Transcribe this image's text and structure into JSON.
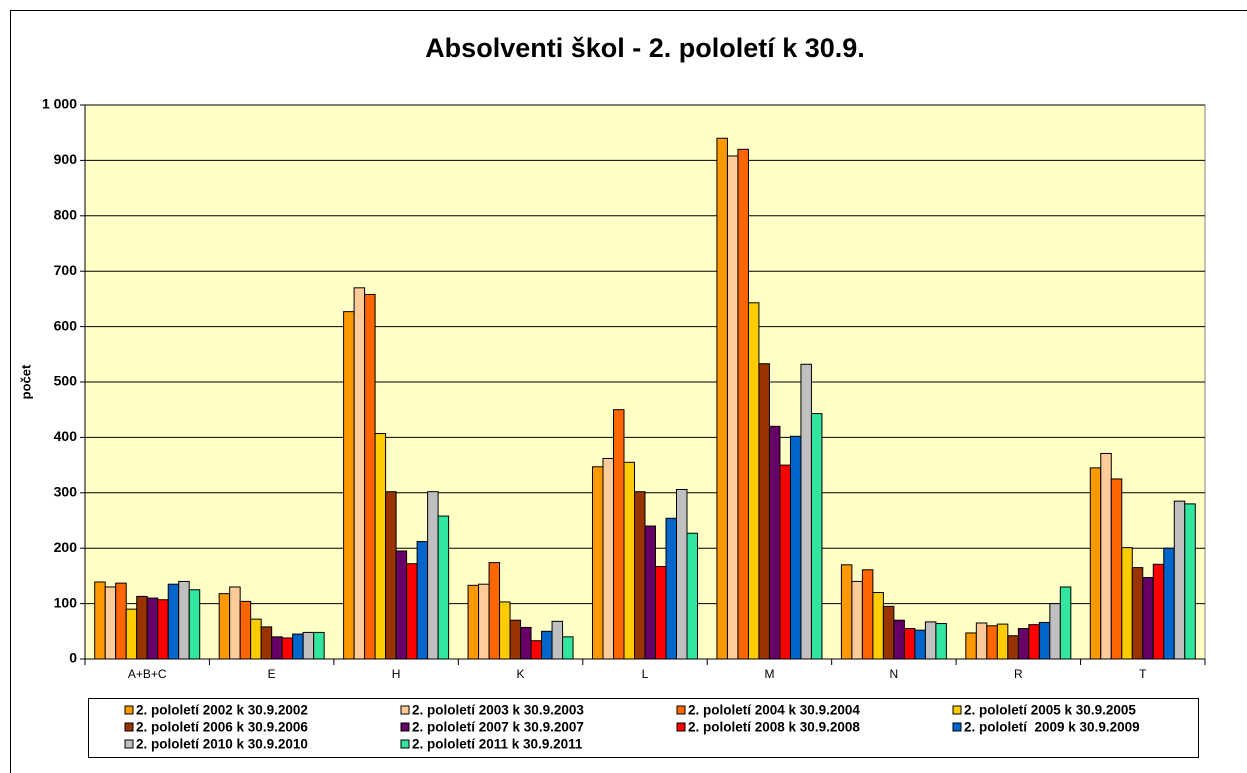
{
  "chart_data": {
    "type": "bar",
    "title": "Absolventi škol - 2. pololetí k 30.9.",
    "y_label": "počet",
    "categories": [
      "A+B+C",
      "E",
      "H",
      "K",
      "L",
      "M",
      "N",
      "R",
      "T"
    ],
    "ylim": [
      0,
      1000
    ],
    "yticks": [
      0,
      100,
      200,
      300,
      400,
      500,
      600,
      700,
      800,
      900,
      {
        "value": 1000,
        "label": "1 000"
      }
    ],
    "grid": true,
    "legend": "bottom",
    "series": [
      {
        "name": "2. pololetí 2002 k 30.9.2002",
        "color": "#FF9900",
        "values": [
          139,
          118,
          627,
          133,
          347,
          940,
          170,
          47,
          345
        ]
      },
      {
        "name": "2. pololetí 2003 k 30.9.2003",
        "color": "#FFCC99",
        "values": [
          130,
          130,
          670,
          135,
          362,
          908,
          140,
          65,
          371
        ]
      },
      {
        "name": "2. pololetí 2004 k 30.9.2004",
        "color": "#FF6600",
        "values": [
          137,
          104,
          658,
          174,
          450,
          920,
          161,
          60,
          325
        ]
      },
      {
        "name": "2. pololetí 2005 k 30.9.2005",
        "color": "#FFCC00",
        "values": [
          90,
          72,
          407,
          103,
          355,
          643,
          120,
          63,
          201
        ]
      },
      {
        "name": "2. pololetí 2006 k 30.9.2006",
        "color": "#993300",
        "values": [
          113,
          58,
          302,
          70,
          302,
          533,
          95,
          42,
          165
        ]
      },
      {
        "name": "2. pololetí 2007 k 30.9.2007",
        "color": "#660066",
        "values": [
          110,
          40,
          195,
          57,
          240,
          420,
          70,
          55,
          147
        ]
      },
      {
        "name": "2. pololetí 2008 k 30.9.2008",
        "color": "#FF0000",
        "values": [
          107,
          38,
          172,
          33,
          167,
          350,
          55,
          62,
          171
        ]
      },
      {
        "name": "2. pololetí  2009 k 30.9.2009",
        "color": "#0066CC",
        "values": [
          135,
          45,
          212,
          50,
          254,
          402,
          52,
          66,
          200
        ]
      },
      {
        "name": "2. pololetí 2010 k 30.9.2010",
        "color": "#C0C0C0",
        "values": [
          140,
          48,
          302,
          68,
          306,
          532,
          67,
          100,
          285
        ]
      },
      {
        "name": "2. pololetí 2011 k 30.9.2011",
        "color": "#33E6A0",
        "values": [
          125,
          48,
          258,
          40,
          227,
          443,
          64,
          130,
          280
        ]
      }
    ]
  }
}
